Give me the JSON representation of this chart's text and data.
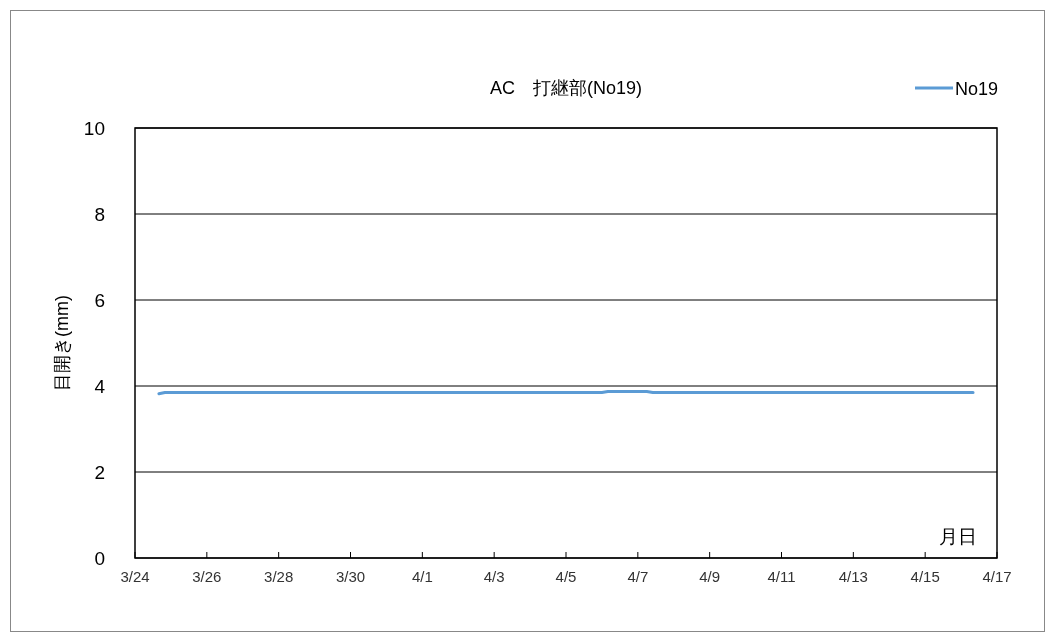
{
  "chart_data": {
    "type": "line",
    "title": "AC　打継部(No19)",
    "xlabel": "月日",
    "ylabel": "目開き(mm)",
    "x": [
      "--03-24T16:00",
      "--03-24T20:00",
      "--04-06T00:00",
      "--04-06T04:00",
      "--04-07T06:00",
      "--04-07T10:00",
      "--04-16T08:00"
    ],
    "series": [
      {
        "name": "No19",
        "color": "#5b9bd5",
        "values": [
          3.82,
          3.85,
          3.85,
          3.87,
          3.87,
          3.85,
          3.85
        ]
      }
    ],
    "xlim": [
      "--03-24",
      "--04-17"
    ],
    "xticks": [
      {
        "value": "--03-24",
        "label": "3/24"
      },
      {
        "value": "--03-26",
        "label": "3/26"
      },
      {
        "value": "--03-28",
        "label": "3/28"
      },
      {
        "value": "--03-30",
        "label": "3/30"
      },
      {
        "value": "--04-01",
        "label": "4/1"
      },
      {
        "value": "--04-03",
        "label": "4/3"
      },
      {
        "value": "--04-05",
        "label": "4/5"
      },
      {
        "value": "--04-07",
        "label": "4/7"
      },
      {
        "value": "--04-09",
        "label": "4/9"
      },
      {
        "value": "--04-11",
        "label": "4/11"
      },
      {
        "value": "--04-13",
        "label": "4/13"
      },
      {
        "value": "--04-15",
        "label": "4/15"
      },
      {
        "value": "--04-17",
        "label": "4/17"
      }
    ],
    "ylim": [
      0,
      10
    ],
    "yticks": [
      0,
      2,
      4,
      6,
      8,
      10
    ],
    "grid": "y",
    "legend": "top right",
    "marker": "none",
    "line_style": "solid"
  }
}
